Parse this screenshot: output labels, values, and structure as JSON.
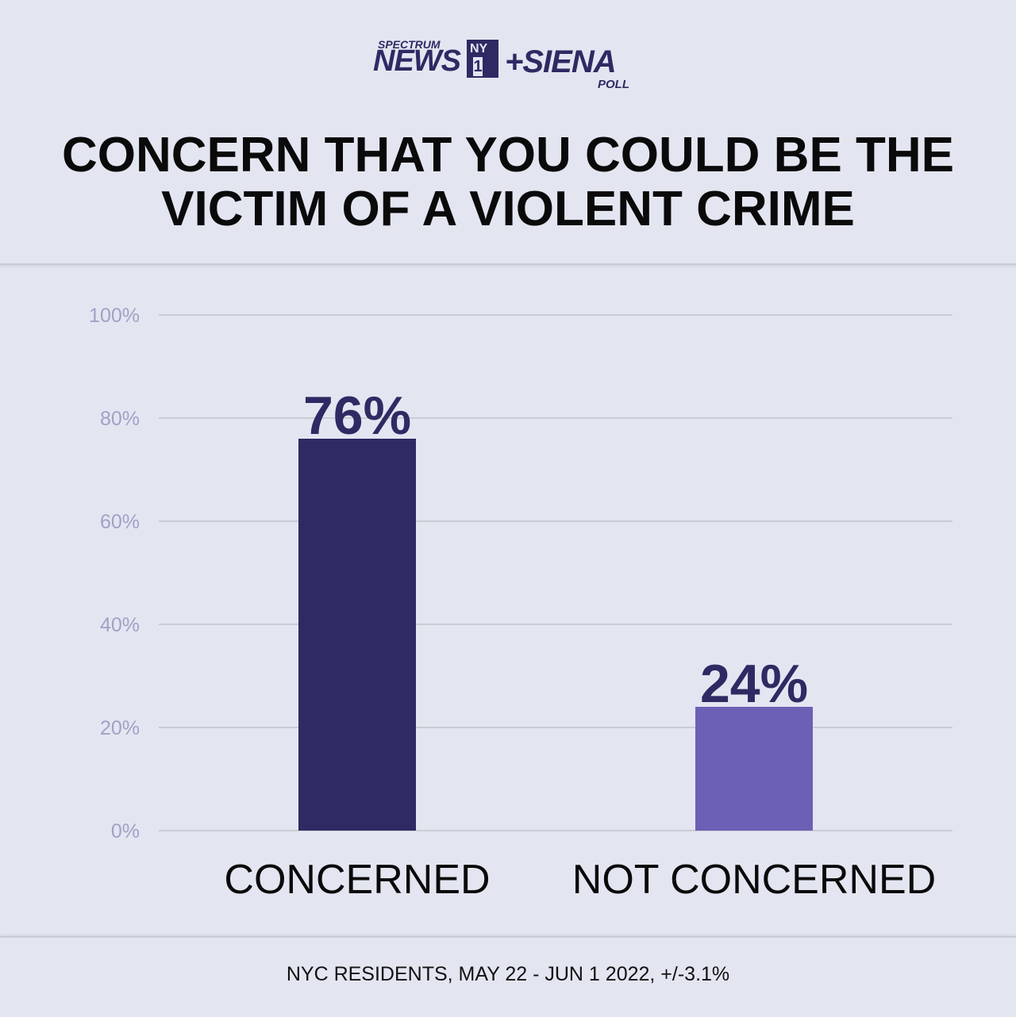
{
  "logo": {
    "spectrum": "SPECTRUM",
    "news": "NEWS",
    "ny": "NY",
    "one": "1",
    "siena": "+SIENA",
    "poll": "POLL"
  },
  "title_lines": [
    "CONCERN THAT YOU COULD BE THE",
    "VICTIM OF A VIOLENT CRIME"
  ],
  "footer_note": "NYC RESIDENTS, MAY 22 - JUN 1 2022, +/-3.1%",
  "chart_data": {
    "type": "bar",
    "title": "CONCERN THAT YOU COULD BE THE VICTIM OF A VIOLENT CRIME",
    "categories": [
      "CONCERNED",
      "NOT CONCERNED"
    ],
    "values": [
      76,
      24
    ],
    "data_labels": [
      "76%",
      "24%"
    ],
    "bar_colors": [
      "#2e2a63",
      "#6b60b5"
    ],
    "ylim": [
      0,
      100
    ],
    "yticks": [
      0,
      20,
      40,
      60,
      80,
      100
    ],
    "ytick_labels": [
      "0%",
      "20%",
      "40%",
      "60%",
      "80%",
      "100%"
    ],
    "grid": true,
    "legend": "none",
    "xlabel": "",
    "ylabel": ""
  },
  "colors": {
    "background": "#e3e6f1",
    "gridline": "#c9ccd2",
    "tick_label": "#a3a0c6",
    "data_label": "#2e2a63",
    "category_label": "#0a0a0a"
  }
}
